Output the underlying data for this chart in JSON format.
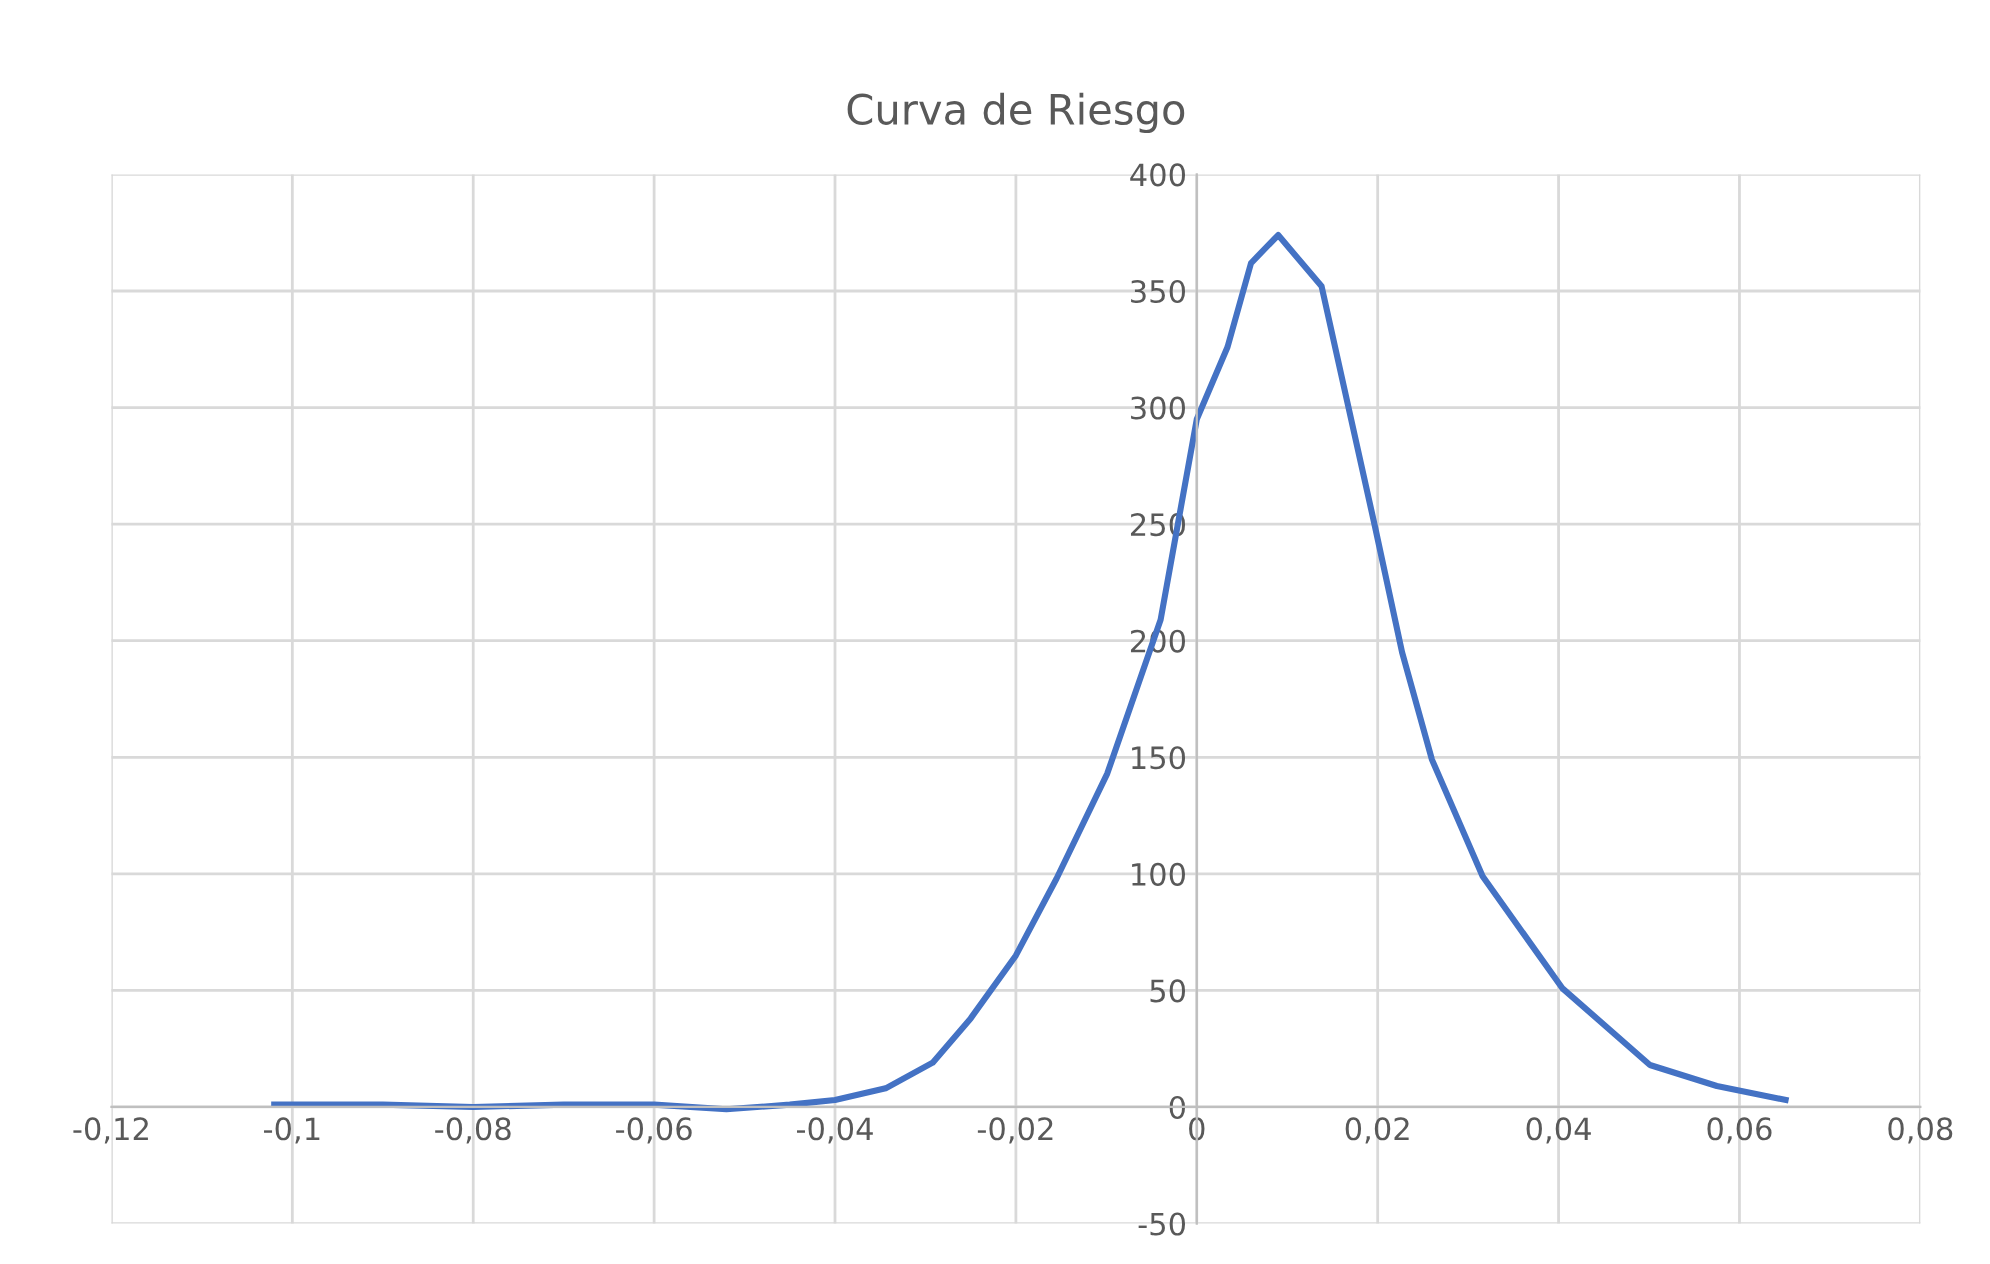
{
  "chart_data": {
    "type": "line",
    "title": "Curva de Riesgo",
    "series": [
      {
        "color": "#4472c4",
        "x": [
          -0.102,
          -0.09,
          -0.08,
          -0.07,
          -0.06,
          -0.052,
          -0.045,
          -0.04,
          -0.0344,
          -0.0292,
          -0.025,
          -0.02,
          -0.0155,
          -0.0099,
          -0.004,
          0,
          0.0034,
          0.006,
          0.009,
          0.0138,
          0.0197,
          0.0227,
          0.026,
          0.0316,
          0.0404,
          0.0501,
          0.0575,
          0.0651
        ],
        "values": [
          1,
          1,
          0,
          1,
          1,
          -1,
          1,
          3,
          8,
          19,
          38,
          65,
          98,
          143,
          209,
          295,
          326,
          362,
          374,
          352,
          249,
          195,
          149,
          99,
          51,
          18,
          9,
          3
        ]
      }
    ],
    "xlim": [
      -0.12,
      0.08
    ],
    "ylim": [
      -50,
      400
    ],
    "xticks": [
      {
        "value": -0.12,
        "label": "-0,12"
      },
      {
        "value": -0.1,
        "label": "-0,1"
      },
      {
        "value": -0.08,
        "label": "-0,08"
      },
      {
        "value": -0.06,
        "label": "-0,06"
      },
      {
        "value": -0.04,
        "label": "-0,04"
      },
      {
        "value": -0.02,
        "label": "-0,02"
      },
      0,
      {
        "value": 0.02,
        "label": "0,02"
      },
      {
        "value": 0.04,
        "label": "0,04"
      },
      {
        "value": 0.06,
        "label": "0,06"
      },
      {
        "value": 0.08,
        "label": "0,08"
      }
    ],
    "yticks": [
      -50,
      0,
      50,
      100,
      150,
      200,
      250,
      300,
      350,
      400
    ],
    "grid": true,
    "marker": "none",
    "line_style": "solid"
  }
}
